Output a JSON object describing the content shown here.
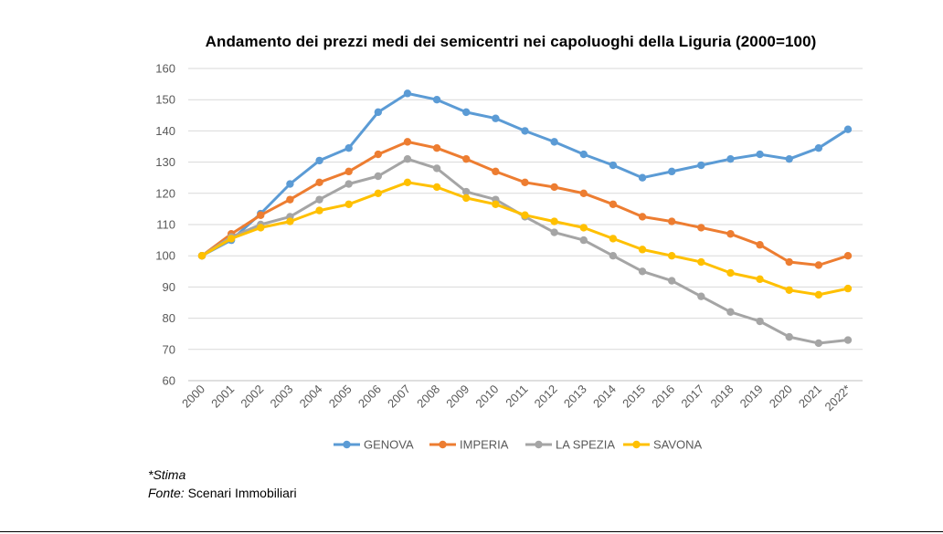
{
  "chart_data": {
    "type": "line",
    "title": "Andamento dei prezzi medi dei semicentri nei capoluoghi della Liguria (2000=100)",
    "xlabel": "",
    "ylabel": "",
    "ylim": [
      60,
      160
    ],
    "yticks": [
      60,
      70,
      80,
      90,
      100,
      110,
      120,
      130,
      140,
      150,
      160
    ],
    "grid": true,
    "legend_position": "bottom",
    "categories": [
      "2000",
      "2001",
      "2002",
      "2003",
      "2004",
      "2005",
      "2006",
      "2007",
      "2008",
      "2009",
      "2010",
      "2011",
      "2012",
      "2013",
      "2014",
      "2015",
      "2016",
      "2017",
      "2018",
      "2019",
      "2020",
      "2021",
      "2022*"
    ],
    "series": [
      {
        "name": "GENOVA",
        "color": "#5b9bd5",
        "values": [
          100,
          105,
          113.5,
          123,
          130.5,
          134.5,
          146,
          152,
          150,
          146,
          144,
          140,
          136.5,
          132.5,
          129,
          125,
          127,
          129,
          131,
          132.5,
          131,
          134.5,
          140.5
        ]
      },
      {
        "name": "IMPERIA",
        "color": "#ed7d31",
        "values": [
          100,
          107,
          113,
          118,
          123.5,
          127,
          132.5,
          136.5,
          134.5,
          131,
          127,
          123.5,
          122,
          120,
          116.5,
          112.5,
          111,
          109,
          107,
          103.5,
          98,
          97,
          100
        ]
      },
      {
        "name": "LA SPEZIA",
        "color": "#a5a5a5",
        "values": [
          100,
          106,
          110,
          112.5,
          118,
          123,
          125.5,
          131,
          128,
          120.5,
          118,
          112.5,
          107.5,
          105,
          100,
          95,
          92,
          87,
          82,
          79,
          74,
          72,
          73
        ]
      },
      {
        "name": "SAVONA",
        "color": "#ffc000",
        "values": [
          100,
          105.5,
          109,
          111,
          114.5,
          116.5,
          120,
          123.5,
          122,
          118.5,
          116.5,
          113,
          111,
          109,
          105.5,
          102,
          100,
          98,
          94.5,
          92.5,
          89,
          87.5,
          89.5
        ]
      }
    ]
  },
  "notes": {
    "stima": "*Stima",
    "fonte_label": "Fonte:",
    "fonte_value": " Scenari Immobiliari"
  }
}
